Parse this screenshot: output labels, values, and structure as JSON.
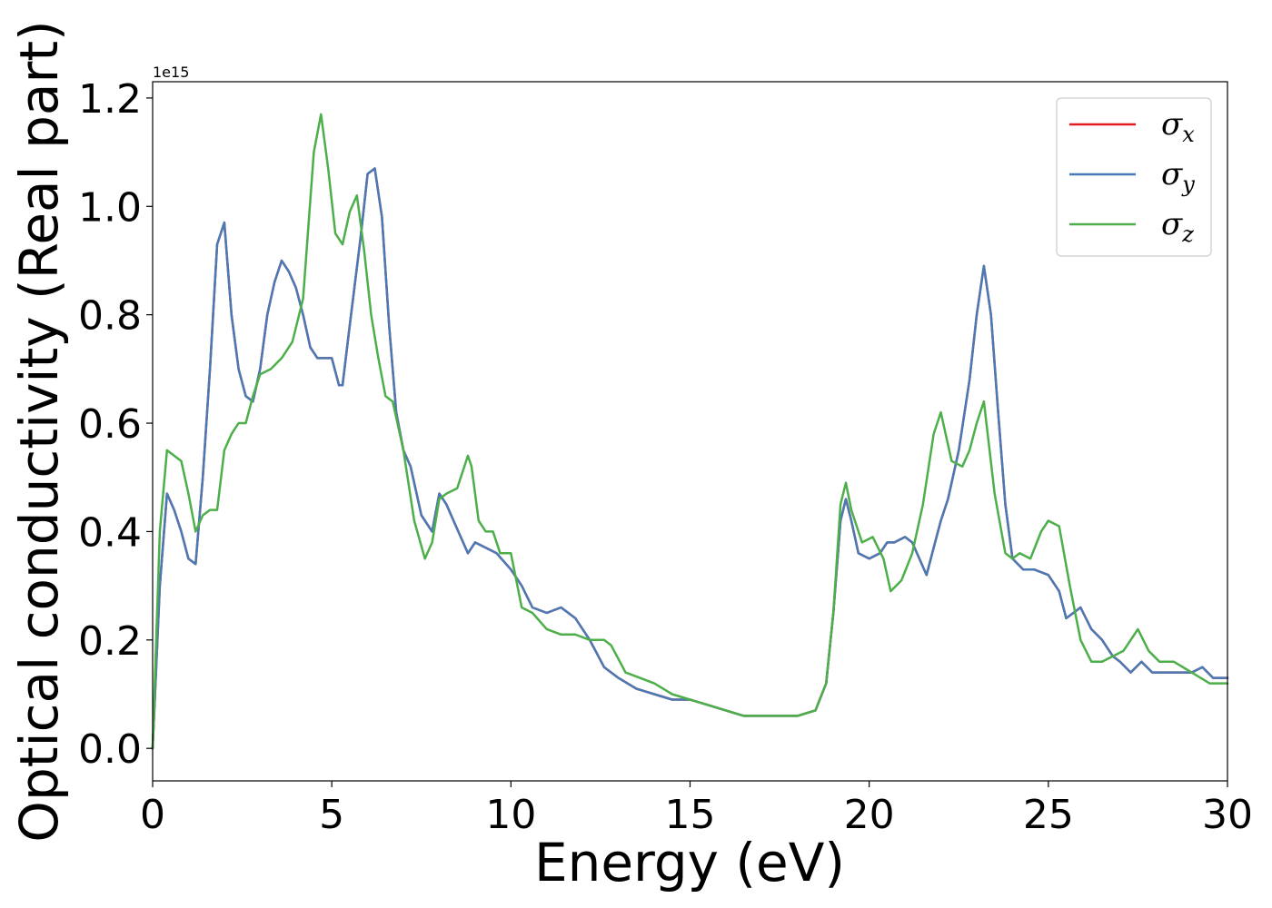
{
  "chart_data": {
    "type": "line",
    "title": "",
    "xlabel": "Energy (eV)",
    "ylabel": "Optical conductivity (Real part)",
    "y_offset_label": "1e15",
    "xlim": [
      0,
      30
    ],
    "ylim": [
      -0.06,
      1.23
    ],
    "x_ticks": [
      0,
      5,
      10,
      15,
      20,
      25,
      30
    ],
    "y_ticks": [
      0.0,
      0.2,
      0.4,
      0.6,
      0.8,
      1.0,
      1.2
    ],
    "x_tick_labels": [
      "0",
      "5",
      "10",
      "15",
      "20",
      "25",
      "30"
    ],
    "y_tick_labels": [
      "0.0",
      "0.2",
      "0.4",
      "0.6",
      "0.8",
      "1.0",
      "1.2"
    ],
    "grid": false,
    "legend_position": "top-right",
    "series": [
      {
        "name": "σx",
        "legend_base": "σ",
        "legend_sub": "x",
        "color": "#e41a1c",
        "x": [
          0,
          0.2,
          0.4,
          0.6,
          0.8,
          1.0,
          1.2,
          1.4,
          1.6,
          1.8,
          2.0,
          2.2,
          2.4,
          2.6,
          2.8,
          3.0,
          3.2,
          3.4,
          3.6,
          3.8,
          4.0,
          4.2,
          4.4,
          4.6,
          4.8,
          5.0,
          5.2,
          5.3,
          5.5,
          5.8,
          6.0,
          6.2,
          6.4,
          6.6,
          6.8,
          7.0,
          7.2,
          7.5,
          7.8,
          8.0,
          8.2,
          8.4,
          8.6,
          8.8,
          9.0,
          9.3,
          9.6,
          10.0,
          10.3,
          10.6,
          11.0,
          11.4,
          11.8,
          12.2,
          12.6,
          13.0,
          13.5,
          14.0,
          14.5,
          15.0,
          15.5,
          16.0,
          16.5,
          17.0,
          17.5,
          18.0,
          18.5,
          18.8,
          19.0,
          19.2,
          19.35,
          19.5,
          19.7,
          20.0,
          20.3,
          20.5,
          20.7,
          21.0,
          21.2,
          21.4,
          21.6,
          21.8,
          22.0,
          22.2,
          22.5,
          22.8,
          23.0,
          23.2,
          23.4,
          23.6,
          23.8,
          24.0,
          24.3,
          24.6,
          25.0,
          25.3,
          25.5,
          25.7,
          25.9,
          26.2,
          26.5,
          26.8,
          27.0,
          27.3,
          27.6,
          27.9,
          28.2,
          28.6,
          29.0,
          29.3,
          29.6,
          30.0
        ],
        "y": [
          0.0,
          0.3,
          0.47,
          0.44,
          0.4,
          0.35,
          0.34,
          0.5,
          0.7,
          0.93,
          0.97,
          0.8,
          0.7,
          0.65,
          0.64,
          0.7,
          0.8,
          0.86,
          0.9,
          0.88,
          0.85,
          0.8,
          0.74,
          0.72,
          0.72,
          0.72,
          0.67,
          0.67,
          0.78,
          0.94,
          1.06,
          1.07,
          0.98,
          0.78,
          0.62,
          0.55,
          0.52,
          0.43,
          0.4,
          0.47,
          0.45,
          0.42,
          0.39,
          0.36,
          0.38,
          0.37,
          0.36,
          0.33,
          0.3,
          0.26,
          0.25,
          0.26,
          0.24,
          0.2,
          0.15,
          0.13,
          0.11,
          0.1,
          0.09,
          0.09,
          0.08,
          0.07,
          0.06,
          0.06,
          0.06,
          0.06,
          0.07,
          0.12,
          0.25,
          0.42,
          0.46,
          0.42,
          0.36,
          0.35,
          0.36,
          0.38,
          0.38,
          0.39,
          0.38,
          0.35,
          0.32,
          0.37,
          0.42,
          0.46,
          0.55,
          0.68,
          0.8,
          0.89,
          0.8,
          0.62,
          0.45,
          0.35,
          0.33,
          0.33,
          0.32,
          0.29,
          0.24,
          0.25,
          0.26,
          0.22,
          0.2,
          0.17,
          0.16,
          0.14,
          0.16,
          0.14,
          0.14,
          0.14,
          0.14,
          0.15,
          0.13,
          0.13
        ]
      },
      {
        "name": "σy",
        "legend_base": "σ",
        "legend_sub": "y",
        "color": "#4a7ab5",
        "x": [
          0,
          0.2,
          0.4,
          0.6,
          0.8,
          1.0,
          1.2,
          1.4,
          1.6,
          1.8,
          2.0,
          2.2,
          2.4,
          2.6,
          2.8,
          3.0,
          3.2,
          3.4,
          3.6,
          3.8,
          4.0,
          4.2,
          4.4,
          4.6,
          4.8,
          5.0,
          5.2,
          5.3,
          5.5,
          5.8,
          6.0,
          6.2,
          6.4,
          6.6,
          6.8,
          7.0,
          7.2,
          7.5,
          7.8,
          8.0,
          8.2,
          8.4,
          8.6,
          8.8,
          9.0,
          9.3,
          9.6,
          10.0,
          10.3,
          10.6,
          11.0,
          11.4,
          11.8,
          12.2,
          12.6,
          13.0,
          13.5,
          14.0,
          14.5,
          15.0,
          15.5,
          16.0,
          16.5,
          17.0,
          17.5,
          18.0,
          18.5,
          18.8,
          19.0,
          19.2,
          19.35,
          19.5,
          19.7,
          20.0,
          20.3,
          20.5,
          20.7,
          21.0,
          21.2,
          21.4,
          21.6,
          21.8,
          22.0,
          22.2,
          22.5,
          22.8,
          23.0,
          23.2,
          23.4,
          23.6,
          23.8,
          24.0,
          24.3,
          24.6,
          25.0,
          25.3,
          25.5,
          25.7,
          25.9,
          26.2,
          26.5,
          26.8,
          27.0,
          27.3,
          27.6,
          27.9,
          28.2,
          28.6,
          29.0,
          29.3,
          29.6,
          30.0
        ],
        "y": [
          0.0,
          0.3,
          0.47,
          0.44,
          0.4,
          0.35,
          0.34,
          0.5,
          0.7,
          0.93,
          0.97,
          0.8,
          0.7,
          0.65,
          0.64,
          0.7,
          0.8,
          0.86,
          0.9,
          0.88,
          0.85,
          0.8,
          0.74,
          0.72,
          0.72,
          0.72,
          0.67,
          0.67,
          0.78,
          0.94,
          1.06,
          1.07,
          0.98,
          0.78,
          0.62,
          0.55,
          0.52,
          0.43,
          0.4,
          0.47,
          0.45,
          0.42,
          0.39,
          0.36,
          0.38,
          0.37,
          0.36,
          0.33,
          0.3,
          0.26,
          0.25,
          0.26,
          0.24,
          0.2,
          0.15,
          0.13,
          0.11,
          0.1,
          0.09,
          0.09,
          0.08,
          0.07,
          0.06,
          0.06,
          0.06,
          0.06,
          0.07,
          0.12,
          0.25,
          0.42,
          0.46,
          0.42,
          0.36,
          0.35,
          0.36,
          0.38,
          0.38,
          0.39,
          0.38,
          0.35,
          0.32,
          0.37,
          0.42,
          0.46,
          0.55,
          0.68,
          0.8,
          0.89,
          0.8,
          0.62,
          0.45,
          0.35,
          0.33,
          0.33,
          0.32,
          0.29,
          0.24,
          0.25,
          0.26,
          0.22,
          0.2,
          0.17,
          0.16,
          0.14,
          0.16,
          0.14,
          0.14,
          0.14,
          0.14,
          0.15,
          0.13,
          0.13
        ]
      },
      {
        "name": "σz",
        "legend_base": "σ",
        "legend_sub": "z",
        "color": "#4daf4a",
        "x": [
          0,
          0.2,
          0.4,
          0.6,
          0.8,
          1.0,
          1.2,
          1.4,
          1.6,
          1.8,
          2.0,
          2.2,
          2.4,
          2.6,
          2.8,
          3.0,
          3.3,
          3.6,
          3.9,
          4.2,
          4.5,
          4.7,
          4.9,
          5.1,
          5.3,
          5.5,
          5.7,
          5.9,
          6.1,
          6.3,
          6.5,
          6.7,
          7.0,
          7.3,
          7.6,
          7.8,
          8.0,
          8.2,
          8.5,
          8.8,
          8.9,
          9.1,
          9.3,
          9.5,
          9.7,
          10.0,
          10.3,
          10.6,
          11.0,
          11.4,
          11.8,
          12.2,
          12.6,
          12.8,
          13.2,
          13.6,
          14.0,
          14.5,
          15.0,
          15.5,
          16.0,
          16.5,
          17.0,
          17.5,
          18.0,
          18.5,
          18.8,
          19.0,
          19.2,
          19.35,
          19.5,
          19.8,
          20.1,
          20.4,
          20.6,
          20.9,
          21.2,
          21.5,
          21.8,
          22.0,
          22.3,
          22.6,
          22.8,
          23.0,
          23.2,
          23.5,
          23.8,
          24.0,
          24.2,
          24.5,
          24.8,
          25.0,
          25.3,
          25.6,
          25.9,
          26.2,
          26.5,
          26.8,
          27.1,
          27.5,
          27.8,
          28.1,
          28.5,
          29.0,
          29.5,
          30.0
        ],
        "y": [
          0.0,
          0.4,
          0.55,
          0.54,
          0.53,
          0.47,
          0.4,
          0.43,
          0.44,
          0.44,
          0.55,
          0.58,
          0.6,
          0.6,
          0.65,
          0.69,
          0.7,
          0.72,
          0.75,
          0.83,
          1.1,
          1.17,
          1.07,
          0.95,
          0.93,
          0.99,
          1.02,
          0.92,
          0.8,
          0.72,
          0.65,
          0.64,
          0.55,
          0.42,
          0.35,
          0.38,
          0.46,
          0.47,
          0.48,
          0.54,
          0.52,
          0.42,
          0.4,
          0.4,
          0.36,
          0.36,
          0.26,
          0.25,
          0.22,
          0.21,
          0.21,
          0.2,
          0.2,
          0.19,
          0.14,
          0.13,
          0.12,
          0.1,
          0.09,
          0.08,
          0.07,
          0.06,
          0.06,
          0.06,
          0.06,
          0.07,
          0.12,
          0.25,
          0.45,
          0.49,
          0.44,
          0.38,
          0.39,
          0.35,
          0.29,
          0.31,
          0.36,
          0.45,
          0.58,
          0.62,
          0.53,
          0.52,
          0.55,
          0.6,
          0.64,
          0.47,
          0.36,
          0.35,
          0.36,
          0.35,
          0.4,
          0.42,
          0.41,
          0.3,
          0.2,
          0.16,
          0.16,
          0.17,
          0.18,
          0.22,
          0.18,
          0.16,
          0.16,
          0.14,
          0.12,
          0.12
        ]
      }
    ]
  }
}
